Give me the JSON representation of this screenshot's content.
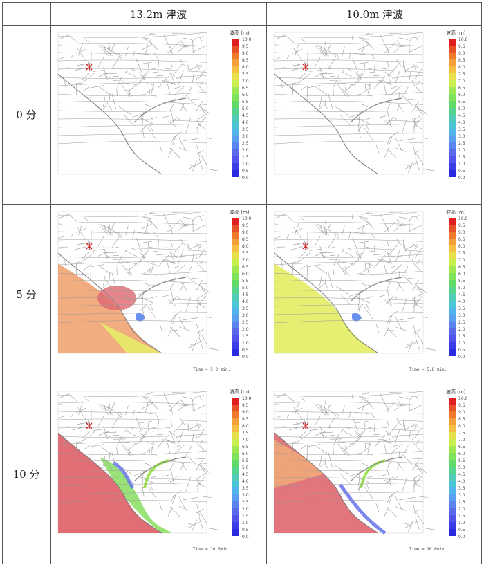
{
  "table": {
    "columns": [
      "13.2m 津波",
      "10.0m 津波"
    ],
    "rows": [
      "0 分",
      "5 分",
      "10 分"
    ]
  },
  "legend": {
    "title": "波高 (m)",
    "ticks": [
      "10.0",
      "9.5",
      "9.0",
      "8.5",
      "8.0",
      "7.5",
      "7.0",
      "6.5",
      "6.0",
      "5.5",
      "5.0",
      "4.5",
      "4.0",
      "3.5",
      "3.0",
      "2.5",
      "2.0",
      "1.5",
      "1.0",
      "0.5",
      "0.0"
    ],
    "colors": [
      "#e02020",
      "#e8502a",
      "#ef7a2e",
      "#f3a03a",
      "#f5c042",
      "#e8e04a",
      "#c8ee50",
      "#9ee854",
      "#7ee25a",
      "#62da6a",
      "#56d490",
      "#52ccb8",
      "#4cc6d6",
      "#52b4ea",
      "#5a9ef0",
      "#5a84ee",
      "#5a68ec",
      "#5050ea",
      "#3c3ce6",
      "#2a2ae0",
      "#ffffff"
    ]
  },
  "times": {
    "r1": "Time =    5.0  min.",
    "r2": "Time =   10.0min."
  },
  "colors": {
    "grid_line": "#555555",
    "map_line": "#9a9a9a",
    "sea_salmon": "#f0a878",
    "sea_red": "#e0666e",
    "sea_yellow": "#e6ee6a",
    "marker": "#d02020"
  }
}
